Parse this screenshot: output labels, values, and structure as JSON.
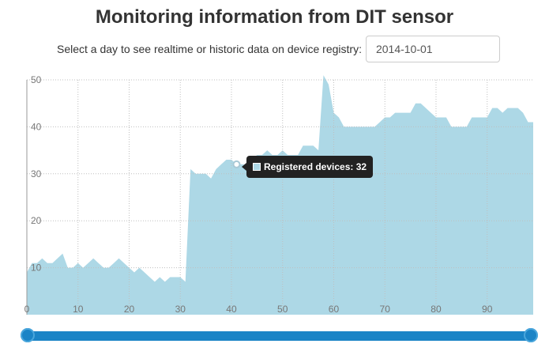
{
  "header": {
    "title": "Monitoring information from DIT sensor"
  },
  "selector": {
    "label": "Select a day to see realtime or historic data on device registry:",
    "date_value": "2014-10-01"
  },
  "tooltip": {
    "text": "Registered devices: 32"
  },
  "colors": {
    "area_fill": "#add8e6",
    "slider": "#1b84c6",
    "tooltip_bg": "#222222"
  },
  "chart_data": {
    "type": "area",
    "xlim": [
      0,
      99
    ],
    "ylim": [
      0,
      50
    ],
    "xticks": [
      0,
      10,
      20,
      30,
      40,
      50,
      60,
      70,
      80,
      90
    ],
    "yticks": [
      10,
      20,
      30,
      40,
      50
    ],
    "grid": true,
    "series": [
      {
        "x": [
          0,
          1,
          2,
          3,
          4,
          5,
          6,
          7,
          8,
          9,
          10,
          11,
          12,
          13,
          14,
          15,
          16,
          17,
          18,
          19,
          20,
          21,
          22,
          23,
          24,
          25,
          26,
          27,
          28,
          29,
          30,
          31,
          32,
          33,
          34,
          35,
          36,
          37,
          38,
          39,
          40,
          41,
          42,
          43,
          44,
          45,
          46,
          47,
          48,
          49,
          50,
          51,
          52,
          53,
          54,
          55,
          56,
          57,
          58,
          59,
          60,
          61,
          62,
          63,
          64,
          65,
          66,
          67,
          68,
          69,
          70,
          71,
          72,
          73,
          74,
          75,
          76,
          77,
          78,
          79,
          80,
          81,
          82,
          83,
          84,
          85,
          86,
          87,
          88,
          89,
          90,
          91,
          92,
          93,
          94,
          95,
          96,
          97,
          98,
          99
        ],
        "y": [
          9,
          11,
          11,
          12,
          11,
          11,
          12,
          13,
          10,
          10,
          11,
          10,
          11,
          12,
          11,
          10,
          10,
          11,
          12,
          11,
          10,
          9,
          10,
          9,
          8,
          7,
          8,
          7,
          8,
          8,
          8,
          7,
          31,
          30,
          30,
          30,
          29,
          31,
          32,
          33,
          33,
          32,
          32,
          32,
          33,
          34,
          34,
          35,
          34,
          34,
          35,
          34,
          34,
          34,
          36,
          36,
          36,
          35,
          51,
          49,
          43,
          42,
          40,
          40,
          40,
          40,
          40,
          40,
          40,
          41,
          42,
          42,
          43,
          43,
          43,
          43,
          45,
          45,
          44,
          43,
          42,
          42,
          42,
          40,
          40,
          40,
          40,
          42,
          42,
          42,
          42,
          44,
          44,
          43,
          44,
          44,
          44,
          43,
          41,
          41
        ]
      }
    ],
    "highlight": {
      "x": 41,
      "y": 32
    }
  }
}
